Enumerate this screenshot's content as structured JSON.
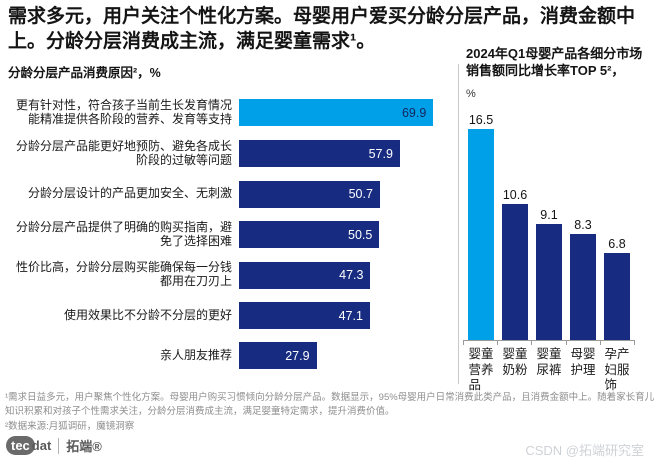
{
  "page": {
    "headline": "需求多元，用户关注个性化方案。母婴用户爱买分龄分层产品，消费金额中上。分龄分层消费成主流，满足婴童需求¹。"
  },
  "colors": {
    "accent_light_blue": "#00A0E9",
    "navy_blue": "#172B80",
    "footnote_grey": "#8e8e8e",
    "watermark_grey": "#cfd2d6"
  },
  "chart_data": [
    {
      "type": "bar",
      "orientation": "horizontal",
      "title": "分龄分层产品消费原因²，%",
      "categories": [
        "更有针对性，符合孩子当前生长发育情况能精准提供各阶段的营养、发育等支持",
        "分龄分层产品能更好地预防、避免各成长阶段的过敏等问题",
        "分龄分层设计的产品更加安全、无刺激",
        "分龄分层产品提供了明确的购买指南，避免了选择困难",
        "性价比高，分龄分层购买能确保每一分钱都用在刀刃上",
        "使用效果比不分龄不分层的更好",
        "亲人朋友推荐"
      ],
      "values": [
        69.9,
        57.9,
        50.7,
        50.5,
        47.3,
        47.1,
        27.9
      ],
      "xlim": [
        0,
        80
      ],
      "value_labels": "inside-end",
      "bar_colors": [
        "#00A0E9",
        "#172B80",
        "#172B80",
        "#172B80",
        "#172B80",
        "#172B80",
        "#172B80"
      ],
      "grid": false,
      "legend": false
    },
    {
      "type": "bar",
      "orientation": "vertical",
      "title": "2024年Q1母婴产品各细分市场销售额同比增长率TOP 5²，",
      "ylabel": "%",
      "categories": [
        "婴童营养品",
        "婴童奶粉",
        "婴童尿裤",
        "母婴护理",
        "孕产妇服饰"
      ],
      "values": [
        16.5,
        10.6,
        9.1,
        8.3,
        6.8
      ],
      "ylim": [
        0,
        18
      ],
      "value_labels": "above",
      "bar_colors": [
        "#00A0E9",
        "#172B80",
        "#172B80",
        "#172B80",
        "#172B80"
      ],
      "grid": false,
      "legend": false
    }
  ],
  "footnotes": {
    "note1": "¹需求日益多元，用户聚焦个性化方案。母婴用户购买习惯倾向分龄分层产品。数据显示，95%母婴用户日常消费此类产品，且消费金额中上。随着家长育儿知识积累和对孩子个性需求关注，分龄分层消费成主流，满足婴童特定需求，提升消费价值。",
    "note2": "²数据来源:月狐调研，魔镜洞察"
  },
  "footer": {
    "logo_tec": "tec",
    "logo_dat": "dat",
    "logo_brand": "拓端®",
    "watermark": "CSDN @拓端研究室"
  }
}
